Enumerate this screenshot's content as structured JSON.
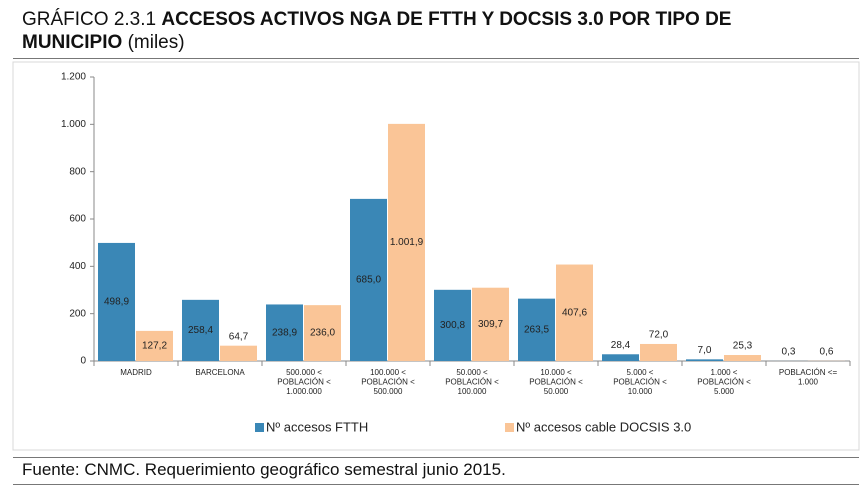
{
  "chart_data": {
    "type": "bar",
    "title": {
      "label": "GRÁFICO 2.3.1",
      "text": "ACCESOS ACTIVOS NGA DE FTTH Y DOCSIS 3.0 POR TIPO DE MUNICIPIO",
      "unit": "(miles)"
    },
    "categories": [
      [
        "MADRID"
      ],
      [
        "BARCELONA"
      ],
      [
        "500.000 <",
        "POBLACIÓN <",
        "1.000.000"
      ],
      [
        "100.000 <",
        "POBLACIÓN <",
        "500.000"
      ],
      [
        "50.000 <",
        "POBLACIÓN <",
        "100.000"
      ],
      [
        "10.000 <",
        "POBLACIÓN <",
        "50.000"
      ],
      [
        "5.000 <",
        "POBLACIÓN <",
        "10.000"
      ],
      [
        "1.000 <",
        "POBLACIÓN <",
        "5.000"
      ],
      [
        "POBLACIÓN <=",
        "1.000"
      ]
    ],
    "series": [
      {
        "name": "Nº accesos FTTH",
        "color": "#3a87b6",
        "values": [
          498.9,
          258.4,
          238.9,
          685.0,
          300.8,
          263.5,
          28.4,
          7.0,
          0.3
        ],
        "value_labels": [
          "498,9",
          "258,4",
          "238,9",
          "685,0",
          "300,8",
          "263,5",
          "28,4",
          "7,0",
          "0,3"
        ]
      },
      {
        "name": "Nº accesos cable DOCSIS 3.0",
        "color": "#fac597",
        "values": [
          127.2,
          64.7,
          236.0,
          1001.9,
          309.7,
          407.6,
          72.0,
          25.3,
          0.6
        ],
        "value_labels": [
          "127,2",
          "64,7",
          "236,0",
          "1.001,9",
          "309,7",
          "407,6",
          "72,0",
          "25,3",
          "0,6"
        ]
      }
    ],
    "ylim": [
      0,
      1200
    ],
    "yticks": [
      0,
      200,
      400,
      600,
      800,
      {
        "value": 1000,
        "label": "1.000"
      },
      {
        "value": 1200,
        "label": "1.200"
      }
    ],
    "legend": "bottom",
    "source": "Fuente: CNMC. Requerimiento geográfico semestral junio 2015."
  }
}
